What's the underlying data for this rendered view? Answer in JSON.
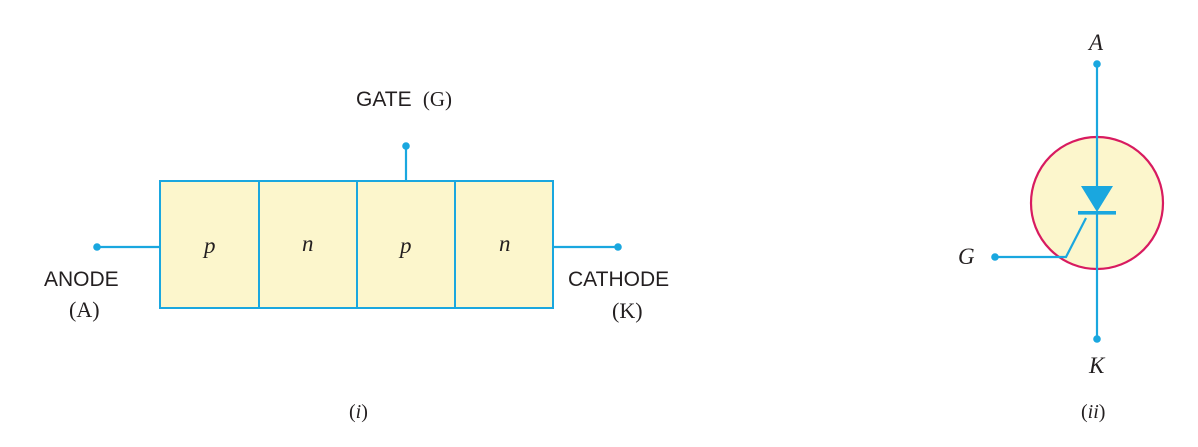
{
  "colors": {
    "wire": "#1aa7df",
    "layer_fill": "#fcf6cc",
    "layer_border": "#1aa7df",
    "circle_fill": "#fcf6cc",
    "circle_border": "#d81b60",
    "text": "#231f20"
  },
  "diagram_i": {
    "gate_label": "GATE",
    "gate_symbol": "(G)",
    "anode_label": "ANODE",
    "anode_symbol": "(A)",
    "cathode_label": "CATHODE",
    "cathode_symbol": "(K)",
    "layers": [
      "p",
      "n",
      "p",
      "n"
    ],
    "caption_open": "(",
    "caption_roman": "i",
    "caption_close": ")"
  },
  "diagram_ii": {
    "anode": "A",
    "cathode": "K",
    "gate": "G",
    "caption_open": "(",
    "caption_roman": "ii",
    "caption_close": ")"
  }
}
